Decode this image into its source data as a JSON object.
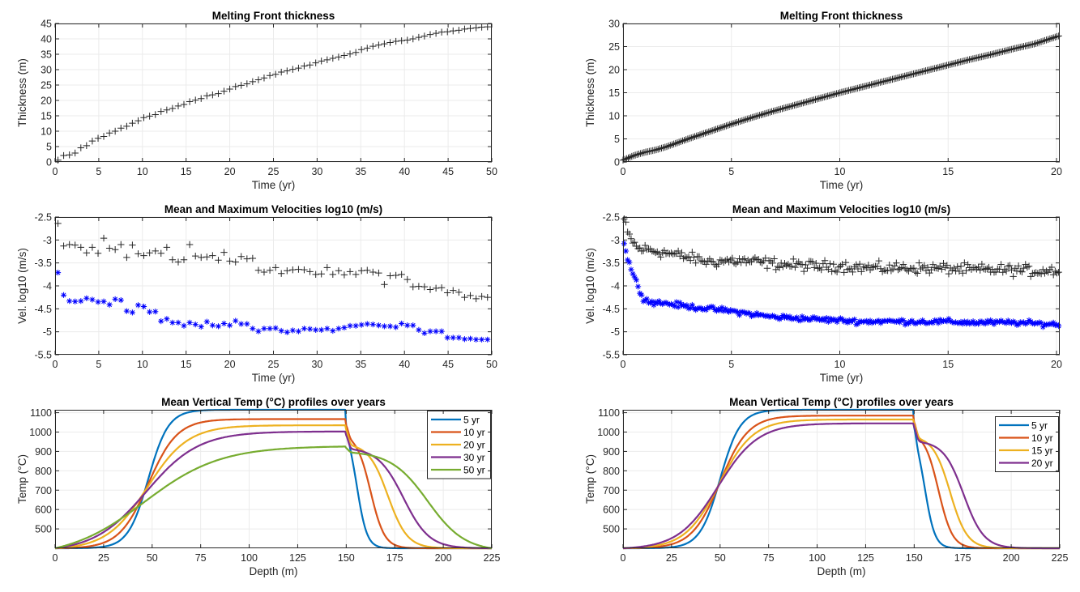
{
  "figure": {
    "layout": "3 rows x 2 columns",
    "colors": {
      "max_marker": "#262626",
      "mean_marker": "#0000ff",
      "grid": "#ebebeb",
      "axes": "#262626",
      "series": [
        "#0072bd",
        "#d95319",
        "#edb120",
        "#7e2f8e",
        "#77ac30"
      ]
    }
  },
  "chart_data": [
    {
      "id": "thickness-50yr",
      "type": "scatter",
      "title": "Melting Front thickness",
      "xlabel": "Time (yr)",
      "ylabel": "Thickness (m)",
      "xlim": [
        0,
        50
      ],
      "ylim": [
        0,
        45
      ],
      "xticks": [
        0,
        5,
        10,
        15,
        20,
        25,
        30,
        35,
        40,
        45,
        50
      ],
      "yticks": [
        0,
        5,
        10,
        15,
        20,
        25,
        30,
        35,
        40,
        45
      ],
      "grid": true,
      "marker": "+",
      "series": [
        {
          "name": "thickness",
          "x": [
            0.33,
            0.98,
            1.64,
            2.29,
            2.95,
            3.6,
            4.26,
            4.92,
            5.57,
            6.23,
            6.88,
            7.54,
            8.2,
            8.85,
            9.51,
            10.16,
            10.82,
            11.48,
            12.13,
            12.79,
            13.44,
            14.1,
            14.75,
            15.41,
            16.07,
            16.72,
            17.38,
            18.03,
            18.69,
            19.34,
            20,
            20.66,
            21.31,
            21.97,
            22.62,
            23.28,
            23.93,
            24.59,
            25.25,
            25.9,
            26.56,
            27.21,
            27.87,
            28.52,
            29.18,
            29.84,
            30.49,
            31.15,
            31.8,
            32.46,
            33.11,
            33.77,
            34.43,
            35.08,
            35.74,
            36.39,
            37.05,
            37.7,
            38.36,
            39.02,
            39.67,
            40.33,
            40.98,
            41.64,
            42.29,
            42.95,
            43.61,
            44.26,
            44.92,
            45.57,
            46.23,
            46.89,
            47.54,
            48.2,
            48.85,
            49.51
          ],
          "y": [
            0.6,
            2.1,
            2.3,
            2.9,
            4.6,
            5.3,
            6.8,
            7.7,
            8.3,
            9.4,
            10.0,
            11.0,
            11.6,
            12.6,
            13.4,
            14.4,
            14.9,
            15.4,
            16.4,
            16.9,
            17.4,
            18.2,
            18.7,
            19.6,
            20.1,
            20.6,
            21.5,
            21.8,
            22.2,
            23.0,
            23.7,
            24.5,
            24.9,
            25.4,
            26.1,
            26.7,
            27.3,
            28.1,
            28.5,
            29.2,
            29.6,
            30.1,
            30.5,
            31.2,
            31.5,
            32.2,
            32.8,
            33.2,
            33.7,
            34.1,
            34.6,
            35.1,
            35.6,
            36.5,
            37.0,
            37.6,
            38.0,
            38.4,
            38.8,
            39.2,
            39.4,
            39.6,
            40.0,
            40.5,
            40.9,
            41.4,
            41.8,
            42.2,
            42.3,
            42.6,
            42.8,
            43.2,
            43.4,
            43.6,
            43.8,
            43.9
          ]
        }
      ]
    },
    {
      "id": "thickness-20yr",
      "type": "scatter",
      "title": "Melting Front thickness",
      "xlabel": "Time (yr)",
      "ylabel": "Thickness (m)",
      "xlim": [
        0,
        20.15
      ],
      "ylim": [
        0,
        30
      ],
      "xticks": [
        0,
        5,
        10,
        15,
        20
      ],
      "yticks": [
        0,
        5,
        10,
        15,
        20,
        25,
        30
      ],
      "grid": true,
      "marker": "+",
      "series": [
        {
          "name": "thickness",
          "note": "dense series ~250 points, approximately linear",
          "x_start": 0.05,
          "x_end": 20.1,
          "n_points": 250,
          "anchor_x": [
            0,
            0.5,
            1,
            1.5,
            2,
            3,
            4,
            5,
            6,
            7,
            8,
            9,
            10,
            11,
            12,
            13,
            14,
            15,
            16,
            17,
            18,
            19,
            20.1
          ],
          "anchor_y": [
            0.4,
            1.4,
            2.1,
            2.6,
            3.3,
            5.0,
            6.6,
            8.2,
            9.7,
            11.1,
            12.4,
            13.7,
            15.0,
            16.2,
            17.4,
            18.6,
            19.8,
            21.0,
            22.2,
            23.3,
            24.5,
            25.6,
            27.3
          ]
        }
      ]
    },
    {
      "id": "velocity-50yr",
      "type": "scatter",
      "title": "Mean and Maximum Velocities log10 (m/s)",
      "xlabel": "Time (yr)",
      "ylabel": "Vel. log10 (m/s)",
      "xlim": [
        0,
        50
      ],
      "ylim": [
        -5.5,
        -2.5
      ],
      "xticks": [
        0,
        5,
        10,
        15,
        20,
        25,
        30,
        35,
        40,
        45,
        50
      ],
      "yticks": [
        -5.5,
        -5,
        -4.5,
        -4,
        -3.5,
        -3,
        -2.5
      ],
      "grid": true,
      "series": [
        {
          "name": "maximum",
          "marker": "+",
          "color": "#262626",
          "x": [
            0.33,
            0.98,
            1.64,
            2.29,
            2.95,
            3.6,
            4.26,
            4.92,
            5.57,
            6.23,
            6.88,
            7.54,
            8.2,
            8.85,
            9.51,
            10.16,
            10.82,
            11.48,
            12.13,
            12.79,
            13.44,
            14.1,
            14.75,
            15.41,
            16.07,
            16.72,
            17.38,
            18.03,
            18.69,
            19.34,
            20,
            20.66,
            21.31,
            21.97,
            22.62,
            23.28,
            23.93,
            24.59,
            25.25,
            25.9,
            26.56,
            27.21,
            27.87,
            28.52,
            29.18,
            29.84,
            30.49,
            31.15,
            31.8,
            32.46,
            33.11,
            33.77,
            34.43,
            35.08,
            35.74,
            36.39,
            37.05,
            37.7,
            38.36,
            39.02,
            39.67,
            40.33,
            40.98,
            41.64,
            42.29,
            42.95,
            43.61,
            44.26,
            44.92,
            45.57,
            46.23,
            46.89,
            47.54,
            48.2,
            48.85,
            49.51
          ],
          "y": [
            -2.64,
            -3.13,
            -3.1,
            -3.11,
            -3.16,
            -3.28,
            -3.16,
            -3.29,
            -2.96,
            -3.18,
            -3.21,
            -3.1,
            -3.38,
            -3.11,
            -3.3,
            -3.34,
            -3.28,
            -3.24,
            -3.29,
            -3.16,
            -3.43,
            -3.48,
            -3.43,
            -3.1,
            -3.35,
            -3.38,
            -3.37,
            -3.34,
            -3.44,
            -3.27,
            -3.46,
            -3.48,
            -3.36,
            -3.41,
            -3.4,
            -3.66,
            -3.7,
            -3.66,
            -3.6,
            -3.73,
            -3.67,
            -3.65,
            -3.64,
            -3.65,
            -3.69,
            -3.75,
            -3.74,
            -3.6,
            -3.75,
            -3.67,
            -3.76,
            -3.69,
            -3.75,
            -3.67,
            -3.66,
            -3.7,
            -3.72,
            -3.97,
            -3.78,
            -3.77,
            -3.75,
            -3.86,
            -4.02,
            -4.01,
            -4.02,
            -4.08,
            -4.05,
            -4.04,
            -4.15,
            -4.1,
            -4.14,
            -4.25,
            -4.21,
            -4.28,
            -4.23,
            -4.25
          ]
        },
        {
          "name": "mean",
          "marker": "*",
          "color": "#0000ff",
          "x": [
            0.33,
            0.98,
            1.64,
            2.29,
            2.95,
            3.6,
            4.26,
            4.92,
            5.57,
            6.23,
            6.88,
            7.54,
            8.2,
            8.85,
            9.51,
            10.16,
            10.82,
            11.48,
            12.13,
            12.79,
            13.44,
            14.1,
            14.75,
            15.41,
            16.07,
            16.72,
            17.38,
            18.03,
            18.69,
            19.34,
            20,
            20.66,
            21.31,
            21.97,
            22.62,
            23.28,
            23.93,
            24.59,
            25.25,
            25.9,
            26.56,
            27.21,
            27.87,
            28.52,
            29.18,
            29.84,
            30.49,
            31.15,
            31.8,
            32.46,
            33.11,
            33.77,
            34.43,
            35.08,
            35.74,
            36.39,
            37.05,
            37.7,
            38.36,
            39.02,
            39.67,
            40.33,
            40.98,
            41.64,
            42.29,
            42.95,
            43.61,
            44.26,
            44.92,
            45.57,
            46.23,
            46.89,
            47.54,
            48.2,
            48.85,
            49.51
          ],
          "y": [
            -3.71,
            -4.2,
            -4.33,
            -4.34,
            -4.33,
            -4.27,
            -4.3,
            -4.35,
            -4.34,
            -4.41,
            -4.29,
            -4.31,
            -4.55,
            -4.58,
            -4.42,
            -4.45,
            -4.57,
            -4.56,
            -4.77,
            -4.72,
            -4.8,
            -4.8,
            -4.87,
            -4.8,
            -4.84,
            -4.89,
            -4.78,
            -4.86,
            -4.88,
            -4.82,
            -4.86,
            -4.76,
            -4.83,
            -4.83,
            -4.93,
            -4.99,
            -4.93,
            -4.93,
            -4.92,
            -4.98,
            -5.01,
            -4.97,
            -4.99,
            -4.93,
            -4.94,
            -4.96,
            -4.96,
            -4.93,
            -4.98,
            -4.93,
            -4.91,
            -4.87,
            -4.87,
            -4.85,
            -4.83,
            -4.84,
            -4.86,
            -4.88,
            -4.88,
            -4.9,
            -4.82,
            -4.86,
            -4.86,
            -4.96,
            -5.03,
            -4.99,
            -4.99,
            -4.99,
            -5.13,
            -5.13,
            -5.13,
            -5.16,
            -5.15,
            -5.17,
            -5.17,
            -5.17
          ]
        }
      ]
    },
    {
      "id": "velocity-20yr",
      "type": "scatter",
      "title": "Mean and Maximum Velocities log10 (m/s)",
      "xlabel": "Time (yr)",
      "ylabel": "Vel. log10 (m/s)",
      "xlim": [
        0,
        20.15
      ],
      "ylim": [
        -5.5,
        -2.5
      ],
      "xticks": [
        0,
        5,
        10,
        15,
        20
      ],
      "yticks": [
        -5.5,
        -5,
        -4.5,
        -4,
        -3.5,
        -3,
        -2.5
      ],
      "grid": true,
      "series": [
        {
          "name": "maximum",
          "marker": "+",
          "color": "#262626",
          "note": "dense noisy series ~250 points",
          "anchor_x": [
            0.05,
            0.2,
            0.4,
            0.7,
            1,
            2,
            3,
            4,
            5,
            6,
            7,
            8,
            9,
            10,
            11,
            12,
            13,
            14,
            15,
            16,
            17,
            18,
            19,
            20.1
          ],
          "anchor_y": [
            -2.55,
            -2.85,
            -3.0,
            -3.2,
            -3.2,
            -3.28,
            -3.38,
            -3.48,
            -3.45,
            -3.47,
            -3.52,
            -3.55,
            -3.58,
            -3.56,
            -3.6,
            -3.62,
            -3.6,
            -3.62,
            -3.62,
            -3.65,
            -3.65,
            -3.65,
            -3.68,
            -3.65
          ],
          "noise": 0.09
        },
        {
          "name": "mean",
          "marker": "*",
          "color": "#0000ff",
          "note": "dense noisy series ~250 points",
          "anchor_x": [
            0.05,
            0.2,
            0.35,
            0.5,
            0.7,
            0.9,
            1.2,
            2,
            3,
            4,
            5,
            6,
            7,
            8,
            9,
            10,
            11,
            12,
            13,
            14,
            15,
            16,
            17,
            18,
            19,
            20.1
          ],
          "anchor_y": [
            -3.08,
            -3.4,
            -3.58,
            -3.8,
            -4.0,
            -4.25,
            -4.35,
            -4.38,
            -4.45,
            -4.5,
            -4.55,
            -4.62,
            -4.68,
            -4.7,
            -4.73,
            -4.75,
            -4.78,
            -4.77,
            -4.78,
            -4.78,
            -4.78,
            -4.8,
            -4.8,
            -4.8,
            -4.82,
            -4.84
          ],
          "noise": 0.04
        }
      ]
    },
    {
      "id": "temp-profiles-50yr",
      "type": "line",
      "title": "Mean Vertical Temp (°C) profiles over years",
      "xlabel": "Depth (m)",
      "ylabel": "Temp (°C)",
      "xlim": [
        0,
        225
      ],
      "ylim": [
        400,
        1115
      ],
      "xticks": [
        0,
        25,
        50,
        75,
        100,
        125,
        150,
        175,
        200,
        225
      ],
      "yticks": [
        500,
        600,
        700,
        800,
        900,
        1000,
        1100
      ],
      "grid": true,
      "legend": "top-right",
      "series": [
        {
          "name": "5 yr",
          "color": "#0072bd",
          "base": 400,
          "plateau": 1115,
          "rise_center": 48,
          "rise_width": 5.2,
          "step_depth": 150,
          "step_temp": 1040,
          "fall_center": 155.5,
          "fall_width": 2.6
        },
        {
          "name": "10 yr",
          "color": "#d95319",
          "base": 400,
          "plateau": 1067,
          "rise_center": 48,
          "rise_width": 7.5,
          "step_depth": 150,
          "step_temp": 990,
          "fall_center": 162.5,
          "fall_width": 3.6
        },
        {
          "name": "20 yr",
          "color": "#edb120",
          "base": 400,
          "plateau": 1035,
          "rise_center": 47.5,
          "rise_width": 10.5,
          "step_depth": 150,
          "step_temp": 942,
          "fall_center": 171.5,
          "fall_width": 5.0
        },
        {
          "name": "30 yr",
          "color": "#7e2f8e",
          "base": 400,
          "plateau": 1003,
          "rise_center": 47,
          "rise_width": 13.5,
          "step_depth": 150,
          "step_temp": 920,
          "fall_center": 179.5,
          "fall_width": 6.6
        },
        {
          "name": "50 yr",
          "color": "#77ac30",
          "base": 400,
          "plateau": 928,
          "rise_center": 46,
          "rise_width": 19.5,
          "step_depth": 150,
          "step_temp": 902,
          "fall_center": 192,
          "fall_width": 9.5
        }
      ]
    },
    {
      "id": "temp-profiles-20yr",
      "type": "line",
      "title": "Mean Vertical Temp (°C) profiles over years",
      "xlabel": "Depth (m)",
      "ylabel": "Temp (°C)",
      "xlim": [
        0,
        225
      ],
      "ylim": [
        400,
        1115
      ],
      "xticks": [
        0,
        25,
        50,
        75,
        100,
        125,
        150,
        175,
        200,
        225
      ],
      "yticks": [
        500,
        600,
        700,
        800,
        900,
        1000,
        1100
      ],
      "grid": true,
      "legend": "top-right",
      "series": [
        {
          "name": "5 yr",
          "color": "#0072bd",
          "base": 400,
          "plateau": 1115,
          "rise_center": 50,
          "rise_width": 5.2,
          "step_depth": 150,
          "step_temp": 1018,
          "fall_center": 155.5,
          "fall_width": 2.6
        },
        {
          "name": "10 yr",
          "color": "#d95319",
          "base": 400,
          "plateau": 1085,
          "rise_center": 50,
          "rise_width": 7.3,
          "step_depth": 150,
          "step_temp": 1000,
          "fall_center": 162.5,
          "fall_width": 3.6
        },
        {
          "name": "15 yr",
          "color": "#edb120",
          "base": 400,
          "plateau": 1065,
          "rise_center": 49.5,
          "rise_width": 8.8,
          "step_depth": 150,
          "step_temp": 980,
          "fall_center": 168.5,
          "fall_width": 4.4
        },
        {
          "name": "20 yr",
          "color": "#7e2f8e",
          "base": 400,
          "plateau": 1045,
          "rise_center": 49,
          "rise_width": 10.3,
          "step_depth": 150,
          "step_temp": 955,
          "fall_center": 175.5,
          "fall_width": 5.2
        }
      ]
    }
  ]
}
